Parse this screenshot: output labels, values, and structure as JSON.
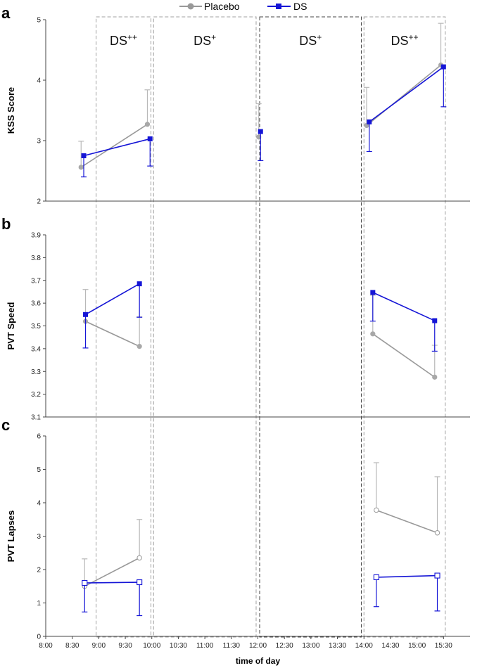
{
  "chart_data": {
    "type": "line",
    "xlabel": "time of day",
    "x_ticks": [
      "8:00",
      "8:30",
      "9:00",
      "9:30",
      "10:00",
      "10:30",
      "11:00",
      "11:30",
      "12:00",
      "12:30",
      "13:00",
      "13:30",
      "14:00",
      "14:30",
      "15:00",
      "15:30"
    ],
    "xlim_minutes": [
      480,
      960
    ],
    "legend": [
      {
        "name": "Placebo",
        "color": "#999999",
        "marker": "circle"
      },
      {
        "name": "DS",
        "color": "#1515d6",
        "marker": "square"
      }
    ],
    "regions": [
      {
        "label": "DS",
        "sup": "++",
        "start_min": 537,
        "end_min": 599
      },
      {
        "label": "DS",
        "sup": "+",
        "start_min": 602,
        "end_min": 718
      },
      {
        "label": "DS",
        "sup": "+",
        "start_min": 722,
        "end_min": 837
      },
      {
        "label": "DS",
        "sup": "++",
        "start_min": 840,
        "end_min": 932
      }
    ],
    "panels": [
      {
        "letter": "a",
        "ylabel": "KSS Score",
        "ylim": [
          2,
          5
        ],
        "yticks": [
          "2",
          "3",
          "4",
          "5"
        ],
        "series": [
          {
            "name": "Placebo",
            "segments": [
              [
                {
                  "t": 520,
                  "v": 2.56,
                  "err": 0.43
                },
                {
                  "t": 595,
                  "v": 3.27,
                  "err": 0.57
                }
              ],
              [
                {
                  "t": 721,
                  "v": 3.06,
                  "err": 0.55
                }
              ],
              [
                {
                  "t": 843,
                  "v": 3.25,
                  "err": 0.63
                },
                {
                  "t": 927,
                  "v": 4.25,
                  "err": 0.69
                }
              ]
            ]
          },
          {
            "name": "DS",
            "segments": [
              [
                {
                  "t": 523,
                  "v": 2.75,
                  "err": 0.35
                },
                {
                  "t": 598,
                  "v": 3.03,
                  "err": 0.45
                }
              ],
              [
                {
                  "t": 723,
                  "v": 3.15,
                  "err": 0.48
                }
              ],
              [
                {
                  "t": 846,
                  "v": 3.31,
                  "err": 0.49
                },
                {
                  "t": 930,
                  "v": 4.22,
                  "err": 0.66
                }
              ]
            ]
          }
        ]
      },
      {
        "letter": "b",
        "ylabel": "PVT Speed",
        "ylim": [
          3.1,
          3.9
        ],
        "yticks": [
          "3.1",
          "3.2",
          "3.3",
          "3.4",
          "3.5",
          "3.6",
          "3.7",
          "3.8",
          "3.9"
        ],
        "series": [
          {
            "name": "Placebo",
            "segments": [
              [
                {
                  "t": 525,
                  "v": 3.52,
                  "err": 0.14
                },
                {
                  "t": 586,
                  "v": 3.41,
                  "err": 0.13
                }
              ],
              [
                {
                  "t": 850,
                  "v": 3.465,
                  "err": 0.17
                },
                {
                  "t": 920,
                  "v": 3.275,
                  "err": 0.14
                }
              ]
            ]
          },
          {
            "name": "DS",
            "segments": [
              [
                {
                  "t": 525,
                  "v": 3.55,
                  "err": 0.147
                },
                {
                  "t": 586,
                  "v": 3.685,
                  "err": 0.147
                }
              ],
              [
                {
                  "t": 850,
                  "v": 3.647,
                  "err": 0.126
                },
                {
                  "t": 920,
                  "v": 3.523,
                  "err": 0.134
                }
              ]
            ]
          }
        ]
      },
      {
        "letter": "c",
        "ylabel": "PVT Lapses",
        "ylim": [
          0,
          6
        ],
        "yticks": [
          "0",
          "1",
          "2",
          "3",
          "4",
          "5",
          "6"
        ],
        "series": [
          {
            "name": "Placebo",
            "segments": [
              [
                {
                  "t": 524,
                  "v": 1.5,
                  "err": 0.82
                },
                {
                  "t": 586,
                  "v": 2.35,
                  "err": 1.15
                }
              ],
              [
                {
                  "t": 854,
                  "v": 3.78,
                  "err": 1.42
                },
                {
                  "t": 923,
                  "v": 3.1,
                  "err": 1.68
                }
              ]
            ]
          },
          {
            "name": "DS",
            "segments": [
              [
                {
                  "t": 524,
                  "v": 1.6,
                  "err": 0.87
                },
                {
                  "t": 586,
                  "v": 1.62,
                  "err": 1.0
                }
              ],
              [
                {
                  "t": 854,
                  "v": 1.77,
                  "err": 0.88
                },
                {
                  "t": 923,
                  "v": 1.82,
                  "err": 1.06
                }
              ]
            ]
          }
        ]
      }
    ]
  }
}
